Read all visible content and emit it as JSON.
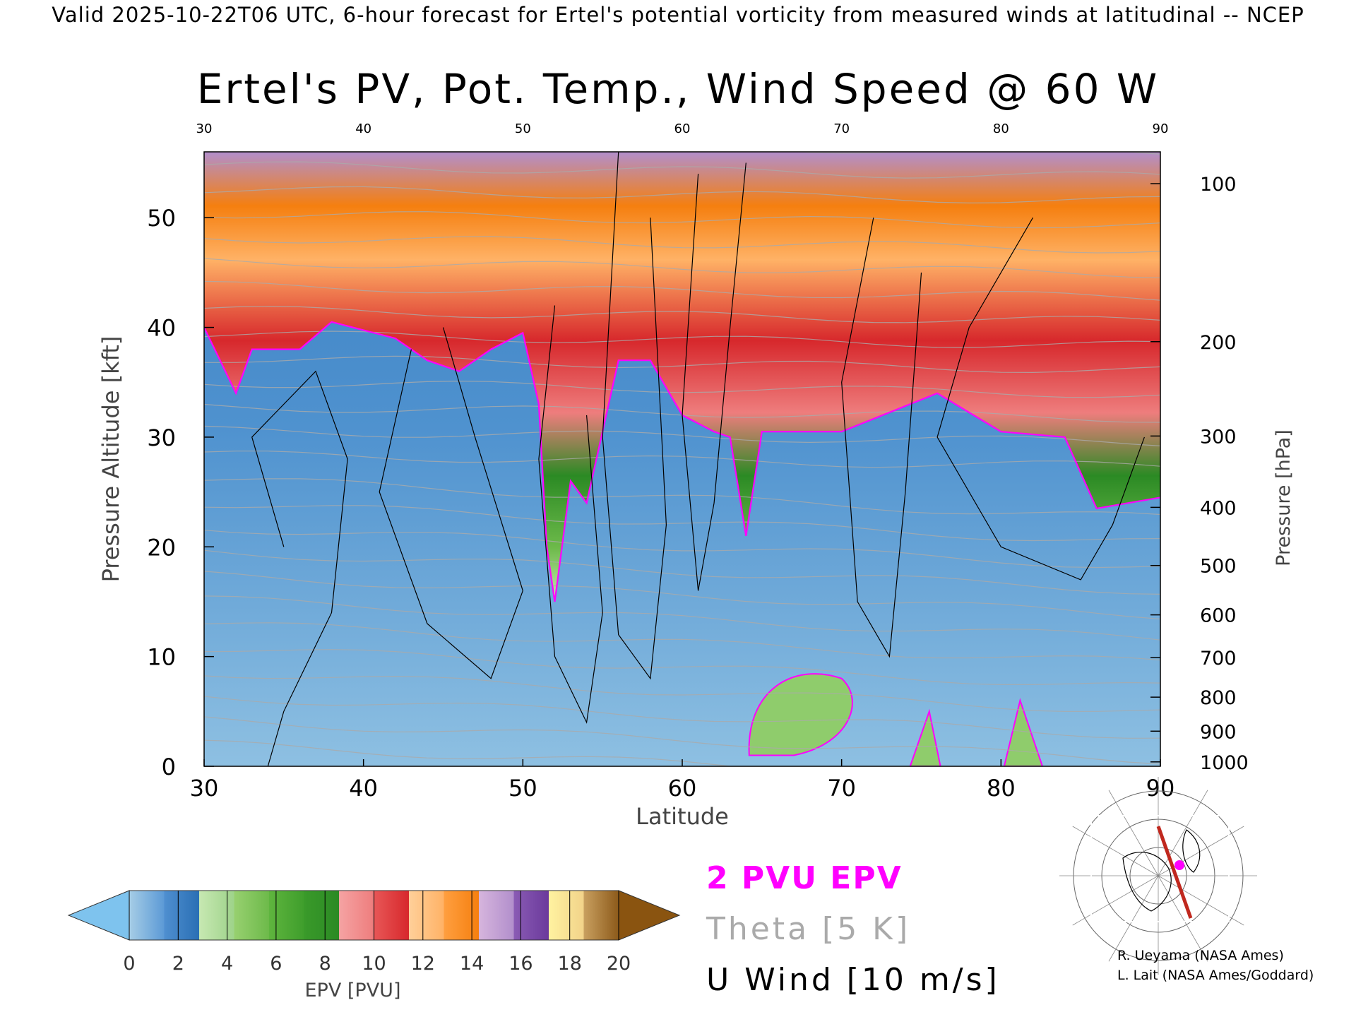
{
  "header": "Valid 2025-10-22T06 UTC, 6-hour forecast for Ertel's potential vorticity from measured winds at latitudinal -- NCEP",
  "chart_data": {
    "type": "heatmap",
    "title": "Ertel's PV, Pot. Temp., Wind Speed @ 60 W",
    "xlabel": "Latitude",
    "ylabel": "Pressure Altitude [kft]",
    "y2label": "Pressure [hPa]",
    "xlim": [
      30,
      90
    ],
    "ylim": [
      0,
      56
    ],
    "x_ticks": [
      "30",
      "40",
      "50",
      "60",
      "70",
      "80",
      "90"
    ],
    "x_top_ticks": [
      "30",
      "40",
      "50",
      "60",
      "70",
      "80",
      "90"
    ],
    "y_ticks": [
      "0",
      "10",
      "20",
      "30",
      "40",
      "50"
    ],
    "pressure_ticks": [
      {
        "label": "100",
        "kft": 53.1
      },
      {
        "label": "200",
        "kft": 38.7
      },
      {
        "label": "300",
        "kft": 30.1
      },
      {
        "label": "400",
        "kft": 23.6
      },
      {
        "label": "500",
        "kft": 18.3
      },
      {
        "label": "600",
        "kft": 13.8
      },
      {
        "label": "700",
        "kft": 9.9
      },
      {
        "label": "800",
        "kft": 6.3
      },
      {
        "label": "900",
        "kft": 3.2
      },
      {
        "label": "1000",
        "kft": 0.4
      }
    ],
    "tropopause_2pvu_kft": [
      {
        "lat": 30,
        "kft": 40
      },
      {
        "lat": 31,
        "kft": 37
      },
      {
        "lat": 32,
        "kft": 34
      },
      {
        "lat": 33,
        "kft": 38
      },
      {
        "lat": 36,
        "kft": 38
      },
      {
        "lat": 38,
        "kft": 40.5
      },
      {
        "lat": 42,
        "kft": 39
      },
      {
        "lat": 44,
        "kft": 37
      },
      {
        "lat": 46,
        "kft": 36
      },
      {
        "lat": 48,
        "kft": 38
      },
      {
        "lat": 50,
        "kft": 39.5
      },
      {
        "lat": 51,
        "kft": 33
      },
      {
        "lat": 51.5,
        "kft": 20
      },
      {
        "lat": 52,
        "kft": 15
      },
      {
        "lat": 53,
        "kft": 26
      },
      {
        "lat": 54,
        "kft": 24
      },
      {
        "lat": 56,
        "kft": 37
      },
      {
        "lat": 58,
        "kft": 37
      },
      {
        "lat": 60,
        "kft": 32
      },
      {
        "lat": 62,
        "kft": 30.5
      },
      {
        "lat": 63,
        "kft": 30
      },
      {
        "lat": 64,
        "kft": 21
      },
      {
        "lat": 65,
        "kft": 30.5
      },
      {
        "lat": 70,
        "kft": 30.5
      },
      {
        "lat": 76,
        "kft": 34
      },
      {
        "lat": 80,
        "kft": 30.5
      },
      {
        "lat": 84,
        "kft": 30
      },
      {
        "lat": 86,
        "kft": 23.5
      },
      {
        "lat": 90,
        "kft": 24.5
      }
    ],
    "colorbar": {
      "label": "EPV [PVU]",
      "ticks": [
        "0",
        "2",
        "4",
        "6",
        "8",
        "10",
        "12",
        "14",
        "16",
        "18",
        "20"
      ],
      "bins": [
        {
          "range": [
            0,
            1
          ],
          "from": "#a6cde6",
          "to": "#5c9ad6"
        },
        {
          "range": [
            1,
            2
          ],
          "from": "#4f8fd0",
          "to": "#2a6fb4"
        },
        {
          "range": [
            2,
            3
          ],
          "from": "#c7e8b2",
          "to": "#9ed38a"
        },
        {
          "range": [
            3,
            4
          ],
          "from": "#98d070",
          "to": "#6dba4a"
        },
        {
          "range": [
            4,
            5
          ],
          "from": "#5fb53e",
          "to": "#3f9e2c"
        },
        {
          "range": [
            5,
            6
          ],
          "from": "#3a9a2a",
          "to": "#2b8a24"
        },
        {
          "range": [
            6,
            7
          ],
          "from": "#f5a3a3",
          "to": "#ee7d7d"
        },
        {
          "range": [
            7,
            8
          ],
          "from": "#e85757",
          "to": "#d7282c"
        },
        {
          "range": [
            8,
            9
          ],
          "from": "#ffd09a",
          "to": "#ffb266"
        },
        {
          "range": [
            9,
            10
          ],
          "from": "#ff9f40",
          "to": "#f57f0f"
        },
        {
          "range": [
            10,
            11
          ],
          "from": "#d6b5dd",
          "to": "#b28fcc"
        },
        {
          "range": [
            11,
            12
          ],
          "from": "#8a5bb4",
          "to": "#6b3a9c"
        },
        {
          "range": [
            12,
            13
          ],
          "from": "#fff2a0",
          "to": "#f2d38a"
        },
        {
          "range": [
            13,
            14
          ],
          "from": "#c9a060",
          "to": "#8c5a1a"
        }
      ],
      "under_color": "#7ec3ee",
      "over_color": "#8a5410"
    },
    "legend": {
      "pvu": "2 PVU EPV",
      "theta": "Theta [5 K]",
      "uwind": "U Wind [10 m/s]"
    }
  },
  "colors": {
    "pvu": "#ff00ff",
    "theta": "#aaaaaa",
    "uwind": "#000000",
    "section_line": "#c0281e"
  },
  "credits": [
    "R. Ueyama (NASA Ames)",
    "L. Lait (NASA Ames/Goddard)"
  ]
}
